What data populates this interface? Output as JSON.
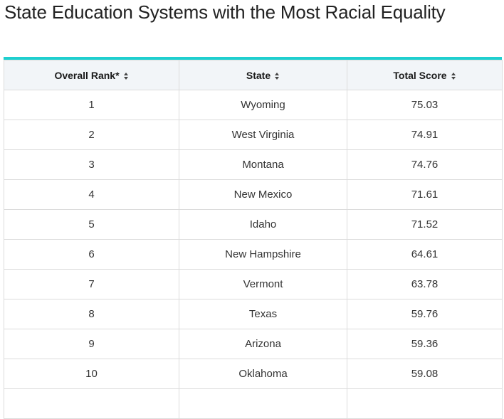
{
  "title": "State Education Systems with the Most Racial Equality",
  "colors": {
    "accent": "#1ecfcf",
    "header_bg": "#f2f5f8",
    "border": "#dcdcdc"
  },
  "table": {
    "headers": [
      {
        "label": "Overall Rank*",
        "icon": "sort-icon"
      },
      {
        "label": "State",
        "icon": "sort-icon"
      },
      {
        "label": "Total Score",
        "icon": "sort-icon"
      }
    ],
    "rows": [
      {
        "rank": "1",
        "state": "Wyoming",
        "score": "75.03"
      },
      {
        "rank": "2",
        "state": "West Virginia",
        "score": "74.91"
      },
      {
        "rank": "3",
        "state": "Montana",
        "score": "74.76"
      },
      {
        "rank": "4",
        "state": "New Mexico",
        "score": "71.61"
      },
      {
        "rank": "5",
        "state": "Idaho",
        "score": "71.52"
      },
      {
        "rank": "6",
        "state": "New Hampshire",
        "score": "64.61"
      },
      {
        "rank": "7",
        "state": "Vermont",
        "score": "63.78"
      },
      {
        "rank": "8",
        "state": "Texas",
        "score": "59.76"
      },
      {
        "rank": "9",
        "state": "Arizona",
        "score": "59.36"
      },
      {
        "rank": "10",
        "state": "Oklahoma",
        "score": "59.08"
      }
    ]
  }
}
